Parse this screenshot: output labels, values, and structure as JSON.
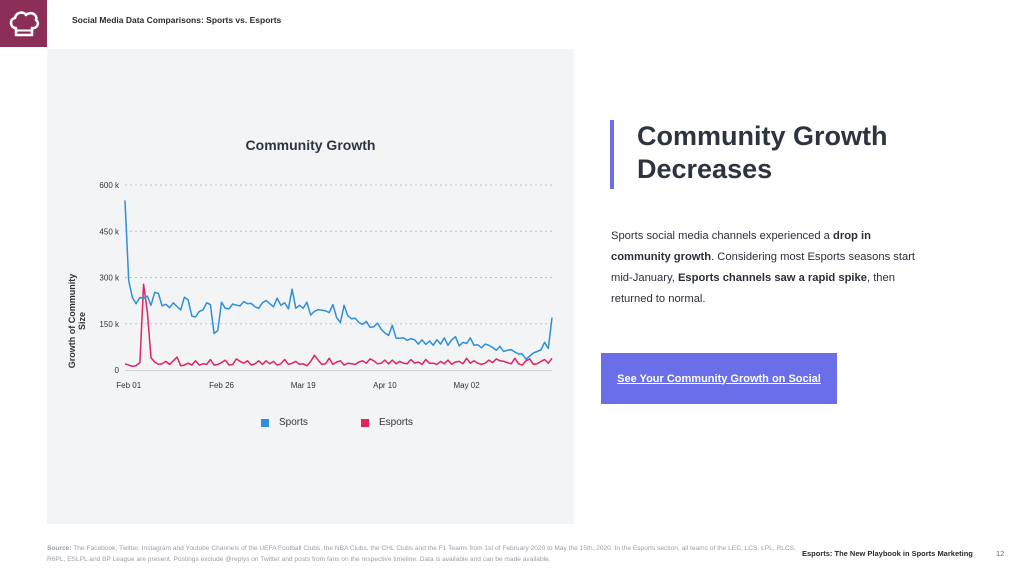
{
  "header": {
    "title": "Social Media Data Comparisons: Sports vs. Esports"
  },
  "icons": {
    "logo": "chef-hat-icon"
  },
  "colors": {
    "logo_bg": "#8c2f58",
    "sports": "#2e8fd8",
    "esports": "#e0245e",
    "accent": "#6a6ee8"
  },
  "side": {
    "heading_line1": "Community Growth",
    "heading_line2": "Decreases",
    "body_parts": [
      "Sports social media channels experienced a ",
      "drop in community growth",
      ". Considering most Esports seasons start mid-January, ",
      "Esports channels saw a rapid spike",
      ", then returned to normal."
    ],
    "cta_label": "See Your Community Growth on Social"
  },
  "footer": {
    "source_label": "Source:",
    "source_text": "The Facebook, Twitter, Instagram and Youtube Channels of the UEFA Football Clubs, the NBA Clubs, the CHL Clubs and the F1 Teams from 1st of February 2020 to May the 15th, 2020. In the Esports section, all teams of the LEC, LCS, LPL, RLCS, R6PL, ESLPL and BP League are present. Postings exclude @replys on Twitter and posts from fans on the respective timeline. Data is available and can be made available.",
    "deck_title": "Esports: The New Playbook in Sports Marketing",
    "page_number": "12"
  },
  "chart_data": {
    "type": "line",
    "title": "Community Growth",
    "ylabel": "Growth of Community Size",
    "xlabel": "",
    "ylim": [
      0,
      600000
    ],
    "yticks": [
      0,
      150000,
      300000,
      450000,
      600000
    ],
    "ytick_labels": [
      "0",
      "150 k",
      "300 k",
      "450 k",
      "600 k"
    ],
    "xticks": [
      "Feb 01",
      "Feb 26",
      "Mar 19",
      "Apr 10",
      "May 02"
    ],
    "xtick_index": [
      1,
      26,
      48,
      70,
      92
    ],
    "grid": true,
    "legend": "bottom",
    "series": [
      {
        "name": "Sports",
        "color": "#2e8fd8",
        "values": [
          550000,
          290000,
          235000,
          215000,
          235000,
          232000,
          240000,
          210000,
          252000,
          248000,
          208000,
          213000,
          202000,
          218000,
          206000,
          195000,
          236000,
          228000,
          175000,
          172000,
          190000,
          195000,
          218000,
          212000,
          118000,
          128000,
          220000,
          200000,
          198000,
          214000,
          210000,
          208000,
          222000,
          215000,
          216000,
          205000,
          200000,
          218000,
          225000,
          215000,
          205000,
          233000,
          210000,
          218000,
          198000,
          262000,
          200000,
          210000,
          200000,
          220000,
          178000,
          190000,
          196000,
          194000,
          192000,
          186000,
          212000,
          170000,
          154000,
          210000,
          176000,
          166000,
          168000,
          154000,
          148000,
          158000,
          138000,
          140000,
          152000,
          132000,
          120000,
          112000,
          145000,
          103000,
          103000,
          104000,
          96000,
          102000,
          98000,
          84000,
          98000,
          83000,
          94000,
          80000,
          98000,
          84000,
          104000,
          80000,
          98000,
          108000,
          78000,
          90000,
          86000,
          104000,
          80000,
          82000,
          72000,
          84000,
          80000,
          73000,
          64000,
          77000,
          60000,
          64000,
          66000,
          58000,
          52000,
          52000,
          35000,
          45000,
          55000,
          60000,
          65000,
          90000,
          70000,
          170000
        ]
      },
      {
        "name": "Esports",
        "color": "#e0245e",
        "values": [
          20000,
          16000,
          12000,
          14000,
          24000,
          278000,
          190000,
          40000,
          26000,
          18000,
          20000,
          28000,
          18000,
          30000,
          42000,
          14000,
          16000,
          22000,
          16000,
          30000,
          16000,
          20000,
          18000,
          34000,
          16000,
          18000,
          24000,
          32000,
          16000,
          18000,
          36000,
          28000,
          22000,
          30000,
          16000,
          20000,
          30000,
          18000,
          30000,
          20000,
          28000,
          16000,
          20000,
          34000,
          18000,
          22000,
          28000,
          18000,
          20000,
          14000,
          28000,
          48000,
          32000,
          18000,
          20000,
          38000,
          18000,
          26000,
          30000,
          16000,
          22000,
          20000,
          18000,
          26000,
          30000,
          22000,
          36000,
          30000,
          20000,
          22000,
          32000,
          20000,
          32000,
          20000,
          28000,
          22000,
          20000,
          34000,
          22000,
          26000,
          18000,
          34000,
          22000,
          22000,
          18000,
          28000,
          20000,
          32000,
          18000,
          26000,
          28000,
          20000,
          38000,
          22000,
          30000,
          22000,
          18000,
          22000,
          32000,
          24000,
          36000,
          30000,
          28000,
          24000,
          20000,
          38000,
          20000,
          16000,
          30000,
          36000,
          18000,
          20000,
          28000,
          34000,
          22000,
          38000
        ]
      }
    ]
  }
}
